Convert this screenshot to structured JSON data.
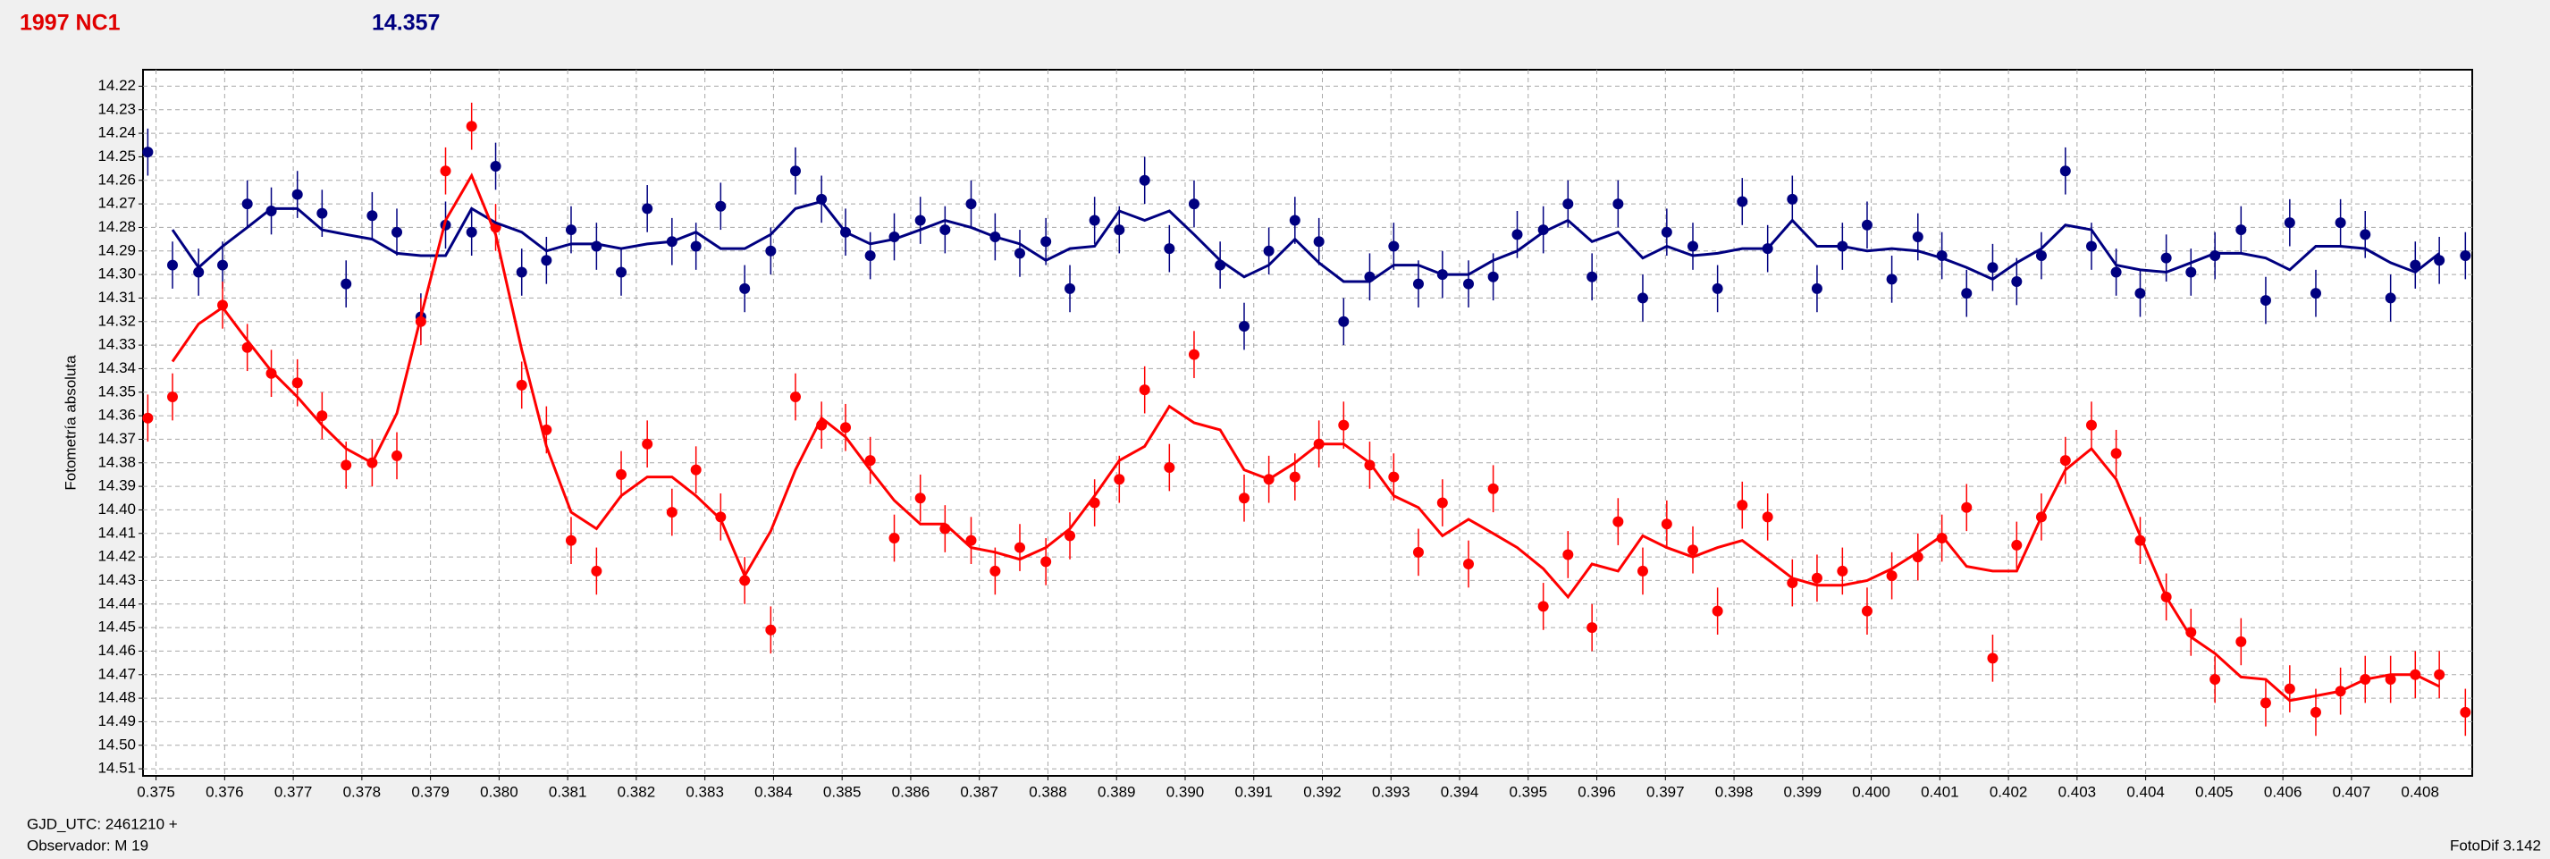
{
  "header": {
    "object": "1997 NC1",
    "magnitude": "14.357"
  },
  "footer": {
    "origin": "GJD_UTC: 2461210 +",
    "observer": "Observador: M 19",
    "software": "FotoDif 3.142"
  },
  "chart_data": {
    "type": "scatter",
    "ylabel": "Fotometría absoluta",
    "invert_y": true,
    "grid": true,
    "xlim": [
      0.37481,
      0.40876
    ],
    "ylim": [
      14.213,
      14.513
    ],
    "xticks": [
      0.375,
      0.376,
      0.377,
      0.378,
      0.379,
      {
        "value": 0.38,
        "label": "0.380"
      },
      0.381,
      0.382,
      0.383,
      0.384,
      0.385,
      0.386,
      0.387,
      0.388,
      0.389,
      {
        "value": 0.39,
        "label": "0.390"
      },
      0.391,
      0.392,
      0.393,
      0.394,
      0.395,
      0.396,
      0.397,
      0.398,
      0.399,
      {
        "value": 0.4,
        "label": "0.400"
      },
      0.401,
      0.402,
      0.403,
      0.404,
      0.405,
      0.406,
      0.407,
      0.408
    ],
    "yticks": [
      14.22,
      14.23,
      14.24,
      14.25,
      14.26,
      14.27,
      14.28,
      14.29,
      {
        "value": 14.3,
        "label": "14.30"
      },
      14.31,
      14.32,
      14.33,
      14.34,
      14.35,
      14.36,
      14.37,
      14.38,
      14.39,
      {
        "value": 14.4,
        "label": "14.40"
      },
      14.41,
      14.42,
      14.43,
      14.44,
      14.45,
      14.46,
      14.47,
      14.48,
      14.49,
      {
        "value": 14.5,
        "label": "14.50"
      },
      14.51
    ],
    "x": [
      0.37488,
      0.37524,
      0.37562,
      0.37597,
      0.37633,
      0.37668,
      0.37706,
      0.37742,
      0.37777,
      0.37815,
      0.37851,
      0.37886,
      0.37922,
      0.3796,
      0.37995,
      0.38033,
      0.38069,
      0.38105,
      0.38142,
      0.38178,
      0.38216,
      0.38252,
      0.38287,
      0.38323,
      0.38358,
      0.38396,
      0.38432,
      0.3847,
      0.38505,
      0.38541,
      0.38576,
      0.38614,
      0.3865,
      0.38688,
      0.38723,
      0.38759,
      0.38797,
      0.38832,
      0.38868,
      0.38904,
      0.38941,
      0.38977,
      0.39013,
      0.39051,
      0.39086,
      0.39122,
      0.3916,
      0.39195,
      0.39231,
      0.39269,
      0.39304,
      0.3934,
      0.39375,
      0.39413,
      0.39449,
      0.39484,
      0.39522,
      0.39558,
      0.39593,
      0.39631,
      0.39667,
      0.39702,
      0.3974,
      0.39776,
      0.39812,
      0.39849,
      0.39885,
      0.39921,
      0.39958,
      0.39994,
      0.4003,
      0.40068,
      0.40103,
      0.40139,
      0.40177,
      0.40212,
      0.40248,
      0.40283,
      0.40321,
      0.40357,
      0.40392,
      0.4043,
      0.40466,
      0.40501,
      0.40539,
      0.40575,
      0.4061,
      0.40648,
      0.40684,
      0.4072,
      0.40757,
      0.40793,
      0.40828,
      0.40866
    ],
    "series": [
      {
        "mode": "points",
        "color": "#000080",
        "error": 0.01,
        "values": [
          14.248,
          14.296,
          14.299,
          14.296,
          14.27,
          14.273,
          14.266,
          14.274,
          14.304,
          14.275,
          14.282,
          14.318,
          14.279,
          14.282,
          14.254,
          14.299,
          14.294,
          14.281,
          14.288,
          14.299,
          14.272,
          14.286,
          14.288,
          14.271,
          14.306,
          14.29,
          14.256,
          14.268,
          14.282,
          14.292,
          14.284,
          14.277,
          14.281,
          14.27,
          14.284,
          14.291,
          14.286,
          14.306,
          14.277,
          14.281,
          14.26,
          14.289,
          14.27,
          14.296,
          14.322,
          14.29,
          14.277,
          14.286,
          14.32,
          14.301,
          14.288,
          14.304,
          14.3,
          14.304,
          14.301,
          14.283,
          14.281,
          14.27,
          14.301,
          14.27,
          14.31,
          14.282,
          14.288,
          14.306,
          14.269,
          14.289,
          14.268,
          14.306,
          14.288,
          14.279,
          14.302,
          14.284,
          14.292,
          14.308,
          14.297,
          14.303,
          14.292,
          14.256,
          14.288,
          14.299,
          14.308,
          14.293,
          14.299,
          14.292,
          14.281,
          14.311,
          14.278,
          14.308,
          14.278,
          14.283,
          14.31,
          14.296,
          14.294,
          14.292
        ]
      },
      {
        "mode": "points",
        "color": "#ff0000",
        "error": 0.01,
        "values": [
          14.361,
          14.352,
          null,
          14.313,
          14.331,
          14.342,
          14.346,
          14.36,
          14.381,
          14.38,
          14.377,
          14.32,
          14.256,
          14.237,
          14.28,
          14.347,
          14.366,
          14.413,
          14.426,
          14.385,
          14.372,
          14.401,
          14.383,
          14.403,
          14.43,
          14.451,
          14.352,
          14.364,
          14.365,
          14.379,
          14.412,
          14.395,
          14.408,
          14.413,
          14.426,
          14.416,
          14.422,
          14.411,
          14.397,
          14.387,
          14.349,
          14.382,
          14.334,
          null,
          14.395,
          14.387,
          14.386,
          14.372,
          14.364,
          14.381,
          14.386,
          14.418,
          14.397,
          14.423,
          14.391,
          null,
          14.441,
          14.419,
          14.45,
          14.405,
          14.426,
          14.406,
          14.417,
          14.443,
          14.398,
          14.403,
          14.431,
          14.429,
          14.426,
          14.443,
          14.428,
          14.42,
          14.412,
          14.399,
          14.463,
          14.415,
          14.403,
          14.379,
          14.364,
          14.376,
          14.413,
          14.437,
          14.452,
          14.472,
          14.456,
          14.482,
          14.476,
          14.486,
          14.477,
          14.472,
          14.472,
          14.47,
          14.47,
          14.486
        ]
      },
      {
        "mode": "line",
        "color": "#000080",
        "values": [
          null,
          14.281,
          14.297,
          14.288,
          14.28,
          14.272,
          14.272,
          14.281,
          14.283,
          14.285,
          14.291,
          14.292,
          14.292,
          14.272,
          14.278,
          14.282,
          14.29,
          14.287,
          14.287,
          14.289,
          14.287,
          14.286,
          14.282,
          14.289,
          14.289,
          14.283,
          14.272,
          14.269,
          14.282,
          14.287,
          14.285,
          14.281,
          14.277,
          14.28,
          14.284,
          14.287,
          14.294,
          14.289,
          14.288,
          14.273,
          14.277,
          14.273,
          14.283,
          14.294,
          14.301,
          14.296,
          14.285,
          14.295,
          14.303,
          14.303,
          14.296,
          14.296,
          14.3,
          14.3,
          14.294,
          14.29,
          14.282,
          14.277,
          14.286,
          14.282,
          14.293,
          14.288,
          14.292,
          14.291,
          14.289,
          14.289,
          14.277,
          14.288,
          14.288,
          14.29,
          14.289,
          14.29,
          14.293,
          14.297,
          14.302,
          14.295,
          14.289,
          14.279,
          14.281,
          14.296,
          14.298,
          14.299,
          14.295,
          14.291,
          14.291,
          14.293,
          14.298,
          14.288,
          14.288,
          14.289,
          14.295,
          14.299,
          14.291,
          null
        ]
      },
      {
        "mode": "line",
        "color": "#ff0000",
        "values": [
          null,
          14.337,
          14.321,
          14.314,
          14.328,
          14.341,
          14.352,
          14.364,
          14.374,
          14.38,
          14.359,
          14.318,
          14.277,
          14.258,
          14.283,
          14.332,
          14.373,
          14.401,
          14.408,
          14.394,
          14.386,
          14.386,
          14.394,
          14.404,
          14.428,
          14.409,
          14.383,
          14.361,
          14.369,
          14.383,
          14.396,
          14.406,
          14.406,
          14.416,
          14.418,
          14.421,
          14.416,
          14.408,
          14.394,
          14.379,
          14.373,
          14.356,
          14.363,
          14.366,
          14.383,
          14.387,
          14.38,
          14.372,
          14.372,
          14.38,
          14.394,
          14.399,
          14.411,
          14.404,
          14.41,
          14.416,
          14.425,
          14.437,
          14.423,
          14.426,
          14.411,
          14.416,
          14.42,
          14.416,
          14.413,
          14.421,
          14.429,
          14.432,
          14.432,
          14.43,
          14.425,
          14.418,
          14.411,
          14.424,
          14.426,
          14.426,
          14.403,
          14.383,
          14.374,
          14.387,
          14.411,
          14.437,
          14.454,
          14.461,
          14.471,
          14.472,
          14.481,
          14.479,
          14.477,
          14.472,
          14.47,
          14.47,
          14.475,
          null
        ]
      }
    ]
  }
}
